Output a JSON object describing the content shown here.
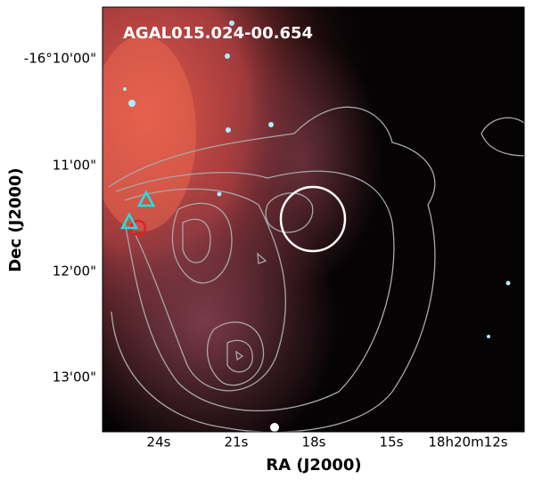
{
  "image": {
    "title": "AGAL015.024-00.654",
    "x_axis": {
      "label": "RA (J2000)",
      "ticks": [
        "24s",
        "21s",
        "18s",
        "15s",
        "18h20m12s"
      ]
    },
    "y_axis": {
      "label": "Dec (J2000)",
      "ticks": [
        "-16°10'00\"",
        "11'00\"",
        "12'00\"",
        "13'00\""
      ]
    }
  }
}
